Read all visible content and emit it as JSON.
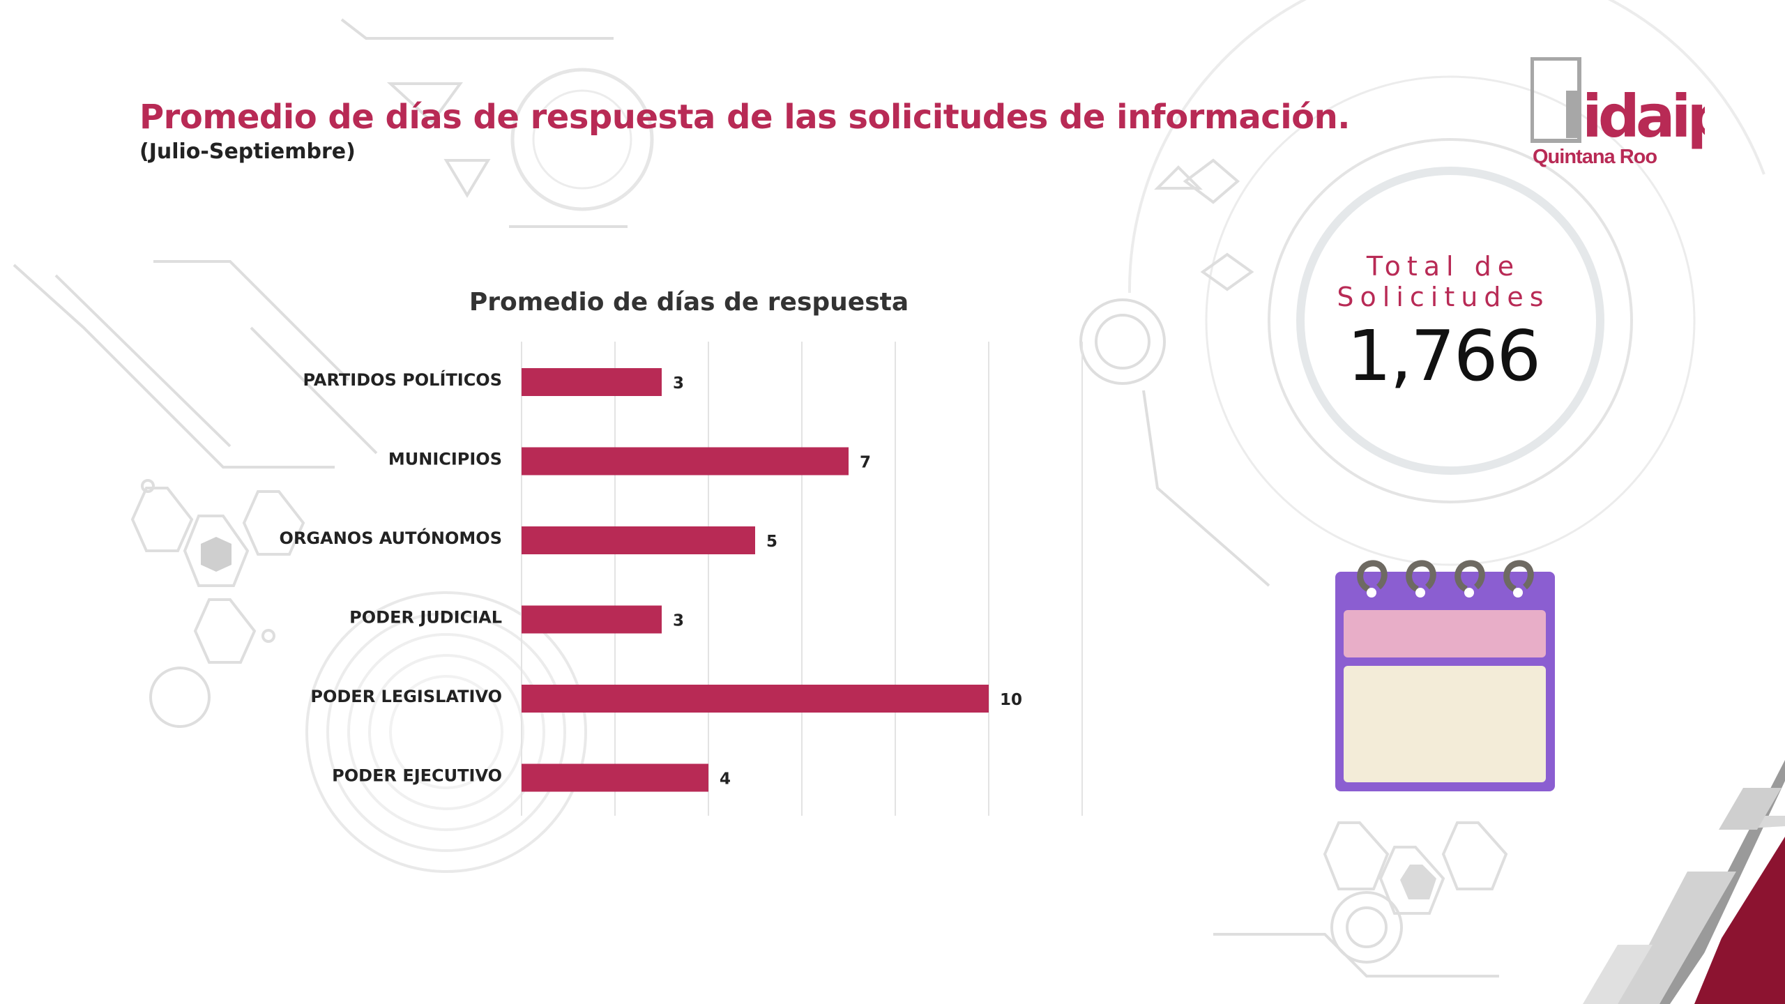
{
  "header": {
    "title": "Promedio de días de respuesta de las solicitudes de información.",
    "subtitle": "(Julio-Septiembre)"
  },
  "logo": {
    "name": "idaip",
    "region": "Quintana Roo"
  },
  "summary": {
    "label": "Total de Solicitudes",
    "value": "1,766"
  },
  "colors": {
    "accent": "#b82a55",
    "bar": "#b82a55",
    "dark_red": "#8c1330",
    "calendar_purple": "#8b5ed1",
    "calendar_pink": "#e8aec8",
    "calendar_cream": "#f3ecd8"
  },
  "icons": {
    "calendar": "calendar-icon",
    "logo": "idaip-logo"
  },
  "chart_data": {
    "type": "bar",
    "orientation": "horizontal",
    "title": "Promedio de días de respuesta",
    "categories": [
      "PARTIDOS POLÍTICOS",
      "MUNICIPIOS",
      "ORGANOS AUTÓNOMOS",
      "PODER JUDICIAL",
      "PODER LEGISLATIVO",
      "PODER EJECUTIVO"
    ],
    "values": [
      3,
      7,
      5,
      3,
      10,
      4
    ],
    "xlim": [
      0,
      12
    ],
    "grid": true,
    "xlabel": "",
    "ylabel": ""
  }
}
